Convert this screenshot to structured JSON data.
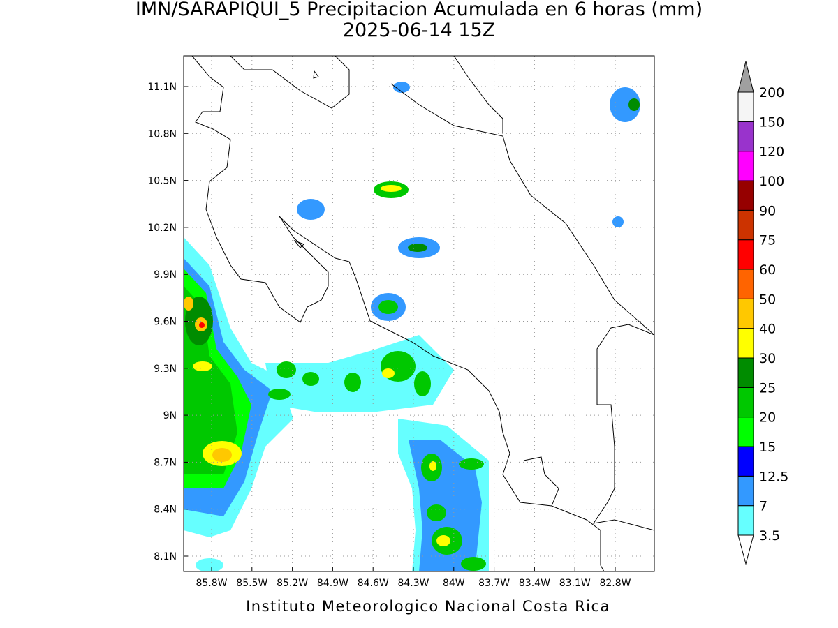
{
  "header": {
    "title": "IMN/SARAPIQUI_5 Precipitacion Acumulada en 6 horas (mm)",
    "subtitle": "2025-06-14 15Z"
  },
  "map": {
    "lat_ticks": [
      "11.1N",
      "10.8N",
      "10.5N",
      "10.2N",
      "9.9N",
      "9.6N",
      "9.3N",
      "9N",
      "8.7N",
      "8.4N",
      "8.1N"
    ],
    "lon_ticks": [
      "85.8W",
      "85.5W",
      "85.2W",
      "84.9W",
      "84.6W",
      "84.3W",
      "84W",
      "83.7W",
      "83.4W",
      "83.1W",
      "82.8W"
    ]
  },
  "colorbar": {
    "labels": [
      "3.5",
      "7",
      "12.5",
      "15",
      "20",
      "25",
      "30",
      "40",
      "50",
      "60",
      "75",
      "90",
      "100",
      "120",
      "150",
      "200"
    ],
    "colors": [
      "#66ffff",
      "#3399ff",
      "#0000ff",
      "#00ff00",
      "#00c800",
      "#008c00",
      "#ffff00",
      "#ffc800",
      "#ff6400",
      "#ff0000",
      "#cc3300",
      "#960000",
      "#ff00ff",
      "#9933cc",
      "#f5f5f5"
    ],
    "under_color": "#ffffff",
    "over_color": "#a0a0a0"
  },
  "footer": "Instituto Meteorologico Nacional Costa Rica"
}
